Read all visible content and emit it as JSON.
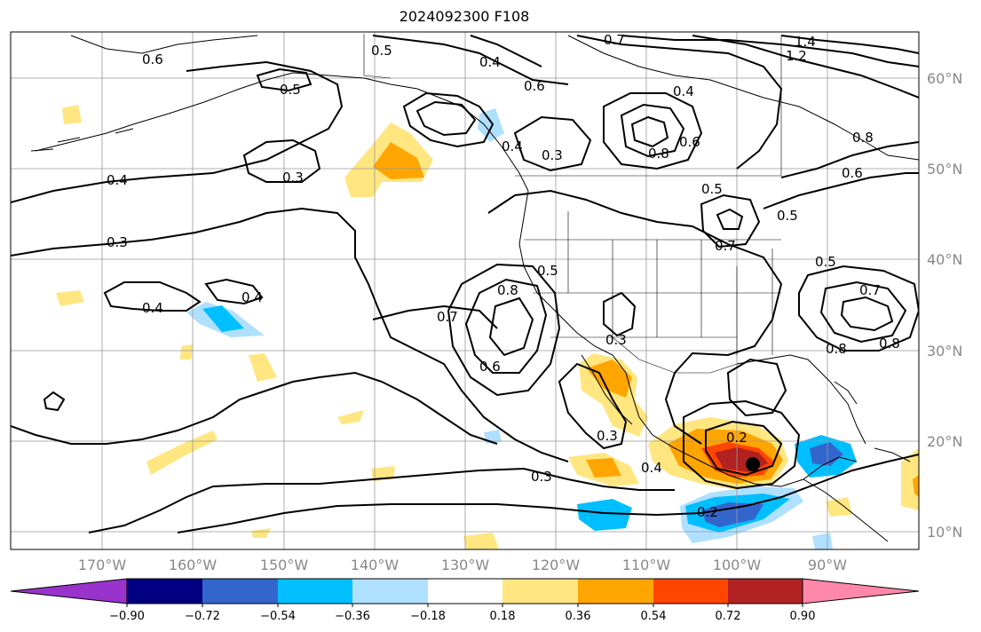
{
  "title": "2024092300 F108",
  "map": {
    "lon_labels": [
      "170°W",
      "160°W",
      "150°W",
      "140°W",
      "130°W",
      "120°W",
      "110°W",
      "100°W",
      "90°W"
    ],
    "lat_labels": [
      "10°N",
      "20°N",
      "30°N",
      "40°N",
      "50°N",
      "60°N"
    ],
    "contour_labels": [
      {
        "text": "0.6"
      },
      {
        "text": "0.5"
      },
      {
        "text": "0.4"
      },
      {
        "text": "0.4"
      },
      {
        "text": "0.3"
      },
      {
        "text": "0.3"
      },
      {
        "text": "0.4"
      },
      {
        "text": "0.4"
      },
      {
        "text": "0.5"
      },
      {
        "text": "0.4"
      },
      {
        "text": "0.6"
      },
      {
        "text": "0.3"
      },
      {
        "text": "0.7"
      },
      {
        "text": "1.4"
      },
      {
        "text": "1.2"
      },
      {
        "text": "0.4"
      },
      {
        "text": "0.8"
      },
      {
        "text": "0.6"
      },
      {
        "text": "0.5"
      },
      {
        "text": "0.7"
      },
      {
        "text": "0.5"
      },
      {
        "text": "0.8"
      },
      {
        "text": "0.6"
      },
      {
        "text": "0.5"
      },
      {
        "text": "0.7"
      },
      {
        "text": "0.8"
      },
      {
        "text": "0.8"
      },
      {
        "text": "0.5"
      },
      {
        "text": "0.8"
      },
      {
        "text": "0.7"
      },
      {
        "text": "0.6"
      },
      {
        "text": "0.3"
      },
      {
        "text": "0.3"
      },
      {
        "text": "0.2"
      },
      {
        "text": "0.4"
      },
      {
        "text": "0.3"
      },
      {
        "text": "0.2"
      }
    ],
    "colors": {
      "land_line": "#000000",
      "grid": "#999999",
      "contour": "#000000"
    }
  },
  "colorbar": {
    "ticks": [
      "−0.90",
      "−0.72",
      "−0.54",
      "−0.36",
      "−0.18",
      "0.18",
      "0.36",
      "0.54",
      "0.72",
      "0.90"
    ],
    "colors": [
      "#9933cc",
      "#000080",
      "#3366cc",
      "#00bfff",
      "#b0e0ff",
      "#ffffff",
      "#ffe680",
      "#ffa500",
      "#ff4500",
      "#b22222",
      "#ff88aa"
    ]
  }
}
